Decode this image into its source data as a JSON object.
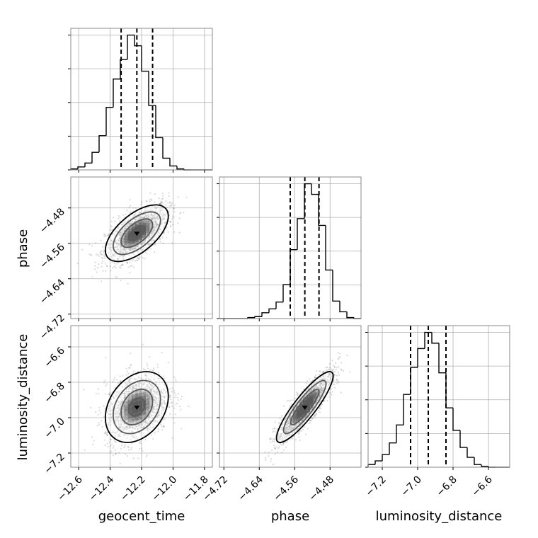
{
  "chart_data": {
    "type": "corner",
    "parameters": [
      "geocent_time",
      "phase",
      "luminosity_distance"
    ],
    "grid": true,
    "marginals": [
      {
        "parameter": "geocent_time",
        "range": [
          -12.65,
          -11.75
        ],
        "bin_edges": [
          -12.65,
          -12.605,
          -12.56,
          -12.515,
          -12.47,
          -12.425,
          -12.38,
          -12.335,
          -12.29,
          -12.245,
          -12.2,
          -12.155,
          -12.11,
          -12.065,
          -12.02,
          -11.975,
          -11.93,
          -11.885,
          -11.84,
          -11.795,
          -11.75
        ],
        "counts": [
          1,
          3,
          7,
          18,
          35,
          64,
          93,
          113,
          138,
          127,
          101,
          66,
          33,
          12,
          4,
          1,
          0,
          0,
          0,
          0
        ],
        "quantiles": [
          -12.33,
          -12.23,
          -12.13
        ],
        "ticks": [
          -12.6,
          -12.4,
          -12.2,
          -12.0,
          -11.8
        ],
        "tick_labels": [
          "−12.6",
          "−12.4",
          "−12.2",
          "−12.0",
          "−11.8"
        ]
      },
      {
        "parameter": "phase",
        "range": [
          -4.73,
          -4.41
        ],
        "bin_edges": [
          -4.73,
          -4.714,
          -4.698,
          -4.682,
          -4.666,
          -4.65,
          -4.634,
          -4.618,
          -4.602,
          -4.586,
          -4.57,
          -4.554,
          -4.538,
          -4.522,
          -4.506,
          -4.49,
          -4.474,
          -4.458,
          -4.442,
          -4.426,
          -4.41
        ],
        "counts": [
          0,
          0,
          0,
          0,
          1,
          2,
          6,
          10,
          17,
          35,
          71,
          103,
          139,
          128,
          96,
          50,
          18,
          7,
          1,
          0
        ],
        "quantiles": [
          -4.57,
          -4.537,
          -4.505
        ],
        "ticks": [
          -4.72,
          -4.64,
          -4.56,
          -4.48
        ],
        "tick_labels": [
          "−4.72",
          "−4.64",
          "−4.56",
          "−4.48"
        ]
      },
      {
        "parameter": "luminosity_distance",
        "range": [
          -7.28,
          -6.48
        ],
        "bin_edges": [
          -7.28,
          -7.24,
          -7.2,
          -7.16,
          -7.12,
          -7.08,
          -7.04,
          -7.0,
          -6.96,
          -6.92,
          -6.88,
          -6.84,
          -6.8,
          -6.76,
          -6.72,
          -6.68,
          -6.64,
          -6.6,
          -6.56,
          -6.52,
          -6.48
        ],
        "counts": [
          3,
          7,
          14,
          27,
          47,
          81,
          111,
          132,
          150,
          138,
          105,
          66,
          41,
          22,
          11,
          3,
          1,
          0,
          0,
          0
        ],
        "quantiles": [
          -7.04,
          -6.94,
          -6.84
        ],
        "ticks": [
          -7.2,
          -7.0,
          -6.8,
          -6.6
        ],
        "tick_labels": [
          "−7.2",
          "−7.0",
          "−6.8",
          "−6.6"
        ]
      }
    ],
    "joint": [
      {
        "x": "geocent_time",
        "y": "phase",
        "center": [
          -12.23,
          -4.537
        ],
        "sigma": [
          0.1,
          0.032
        ],
        "rho": 0.6
      },
      {
        "x": "geocent_time",
        "y": "luminosity_distance",
        "center": [
          -12.23,
          -6.94
        ],
        "sigma": [
          0.1,
          0.1
        ],
        "rho": 0.3
      },
      {
        "x": "phase",
        "y": "luminosity_distance",
        "center": [
          -4.537,
          -6.94
        ],
        "sigma": [
          0.032,
          0.1
        ],
        "rho": 0.88
      }
    ],
    "joint_y_ticks": [
      {
        "parameter": "phase",
        "ticks": [
          -4.48,
          -4.56,
          -4.64,
          -4.72
        ],
        "tick_labels": [
          "−4.48",
          "−4.56",
          "−4.64",
          "−4.72"
        ]
      },
      {
        "parameter": "luminosity_distance",
        "ticks": [
          -6.6,
          -6.8,
          -7.0,
          -7.2
        ],
        "tick_labels": [
          "−6.6",
          "−6.8",
          "−7.0",
          "−7.2"
        ]
      }
    ],
    "contour_levels_sigma": [
      0.5,
      1.0,
      1.5,
      2.0
    ],
    "colors": {
      "line": "#000000",
      "grid": "#b0b0b0",
      "points": "#555555",
      "density": "#000000"
    }
  },
  "axis_labels": {
    "x_geocent_time": "geocent_time",
    "x_phase": "phase",
    "x_luminosity_distance": "luminosity_distance",
    "y_phase": "phase",
    "y_luminosity_distance": "luminosity_distance"
  }
}
